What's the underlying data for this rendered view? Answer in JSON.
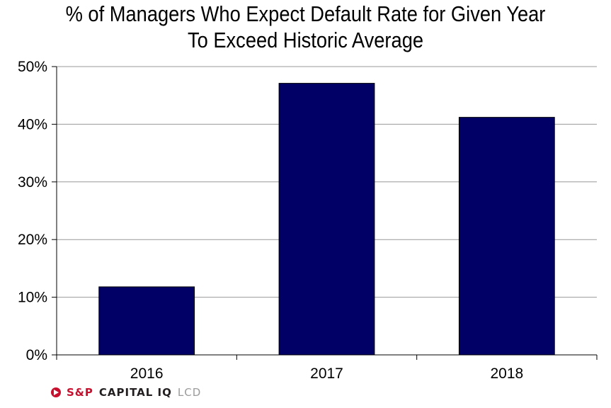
{
  "chart_data": {
    "type": "bar",
    "title_line1": "% of Managers Who Expect Default Rate for Given Year",
    "title_line2": "To Exceed Historic Average",
    "categories": [
      "2016",
      "2017",
      "2018"
    ],
    "values": [
      11.8,
      47.1,
      41.2
    ],
    "ylim": [
      0,
      50
    ],
    "yticks": [
      0,
      10,
      20,
      30,
      40,
      50
    ],
    "ytick_labels": [
      "0%",
      "10%",
      "20%",
      "30%",
      "40%",
      "50%"
    ],
    "grid": true,
    "bar_color": "#000066",
    "grid_color": "#999999"
  },
  "footer": {
    "brand_part1": "S&P",
    "brand_part2": "CAPITAL IQ",
    "brand_part3": "LCD",
    "brand_color": "#c8102e"
  }
}
